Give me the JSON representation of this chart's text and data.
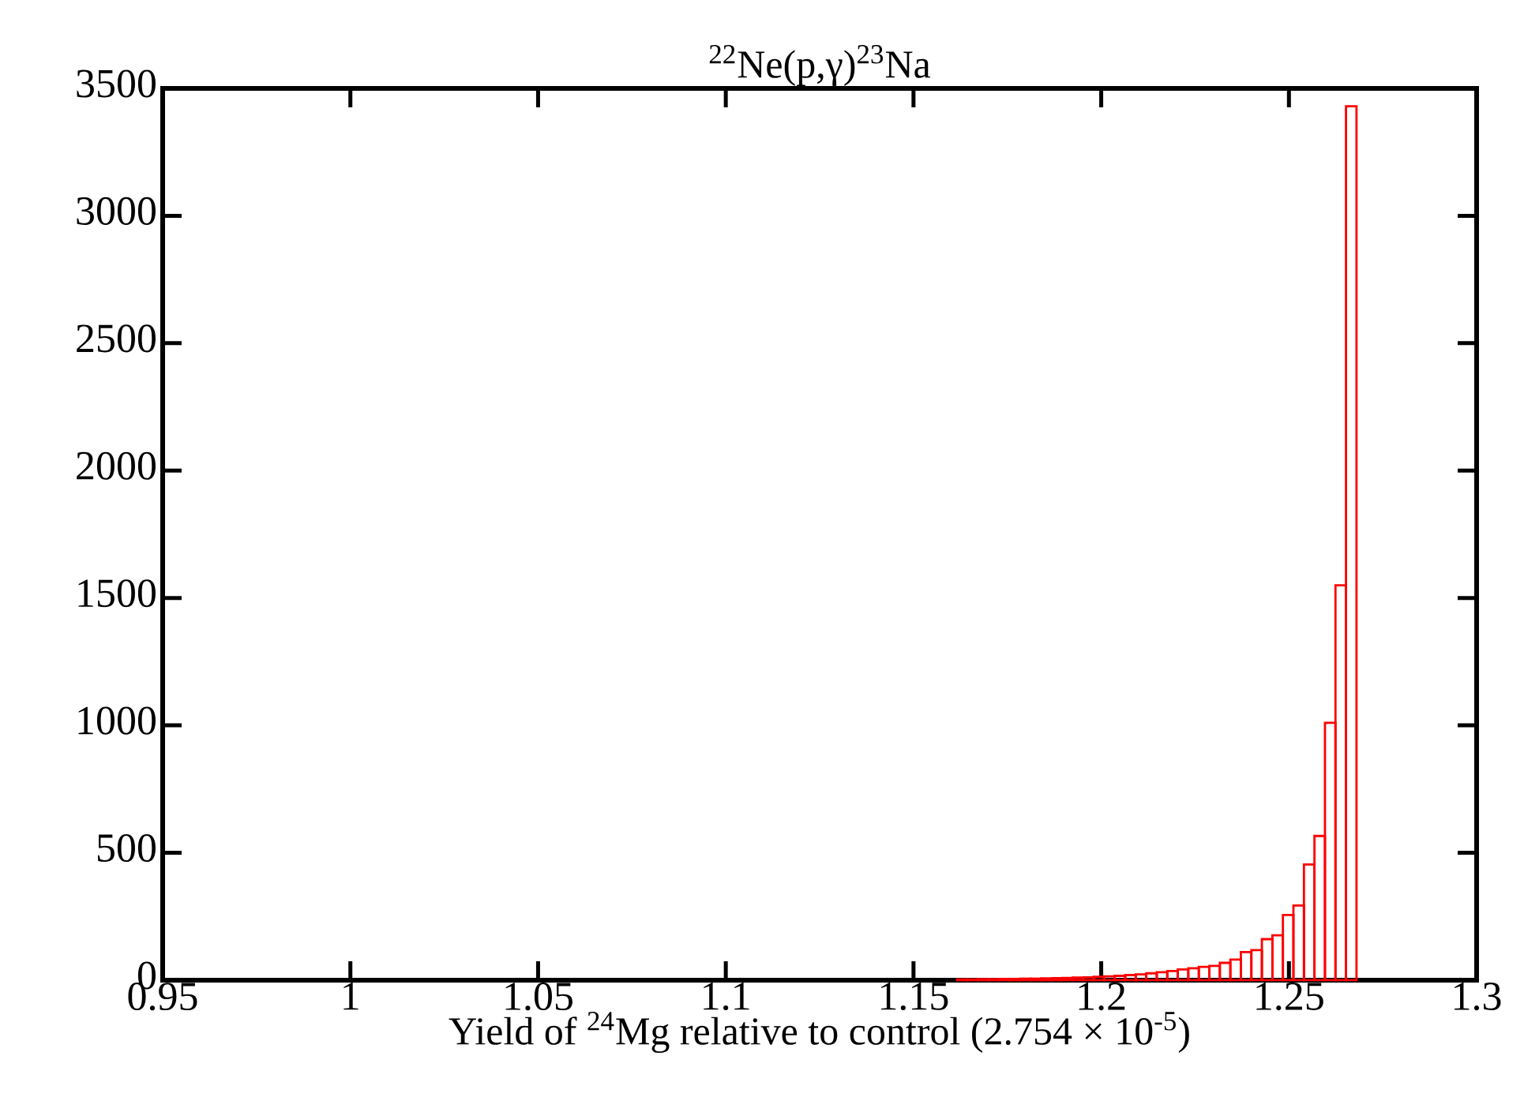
{
  "chart_data": {
    "type": "histogram",
    "title": "$^{22}$Ne(p,γ)$^{23}$Na",
    "xlabel": "Yield of $^{24}$Mg relative to control (2.754 × 10$^{-5}$)",
    "bins": [
      1.1616,
      1.1644,
      1.1672,
      1.17,
      1.1728,
      1.1756,
      1.1784,
      1.1812,
      1.184,
      1.1868,
      1.1896,
      1.1924,
      1.1952,
      1.198,
      1.2008,
      1.2036,
      1.2064,
      1.2092,
      1.212,
      1.2148,
      1.2176,
      1.2204,
      1.2232,
      1.226,
      1.2288,
      1.2316,
      1.2344,
      1.2372,
      1.24,
      1.2428,
      1.2456,
      1.2484,
      1.2512,
      1.254,
      1.2568,
      1.2596,
      1.2624,
      1.2652,
      1.268
    ],
    "values": [
      3,
      3,
      4,
      4,
      5,
      5,
      6,
      6,
      7,
      8,
      9,
      10,
      11,
      13,
      15,
      17,
      20,
      23,
      27,
      31,
      36,
      42,
      47,
      52,
      56,
      68,
      81,
      110,
      118,
      161,
      176,
      256,
      293,
      454,
      566,
      1010,
      1550,
      3430
    ],
    "color": "#ff0000",
    "xlim": [
      0.95,
      1.3
    ],
    "ylim": [
      0,
      3500
    ],
    "xticks": [
      0.95,
      1,
      1.05,
      1.1,
      1.15,
      1.2,
      1.25,
      1.3
    ],
    "yticks": [
      0,
      500,
      1000,
      1500,
      2000,
      2500,
      3000,
      3500
    ],
    "grid": false
  }
}
